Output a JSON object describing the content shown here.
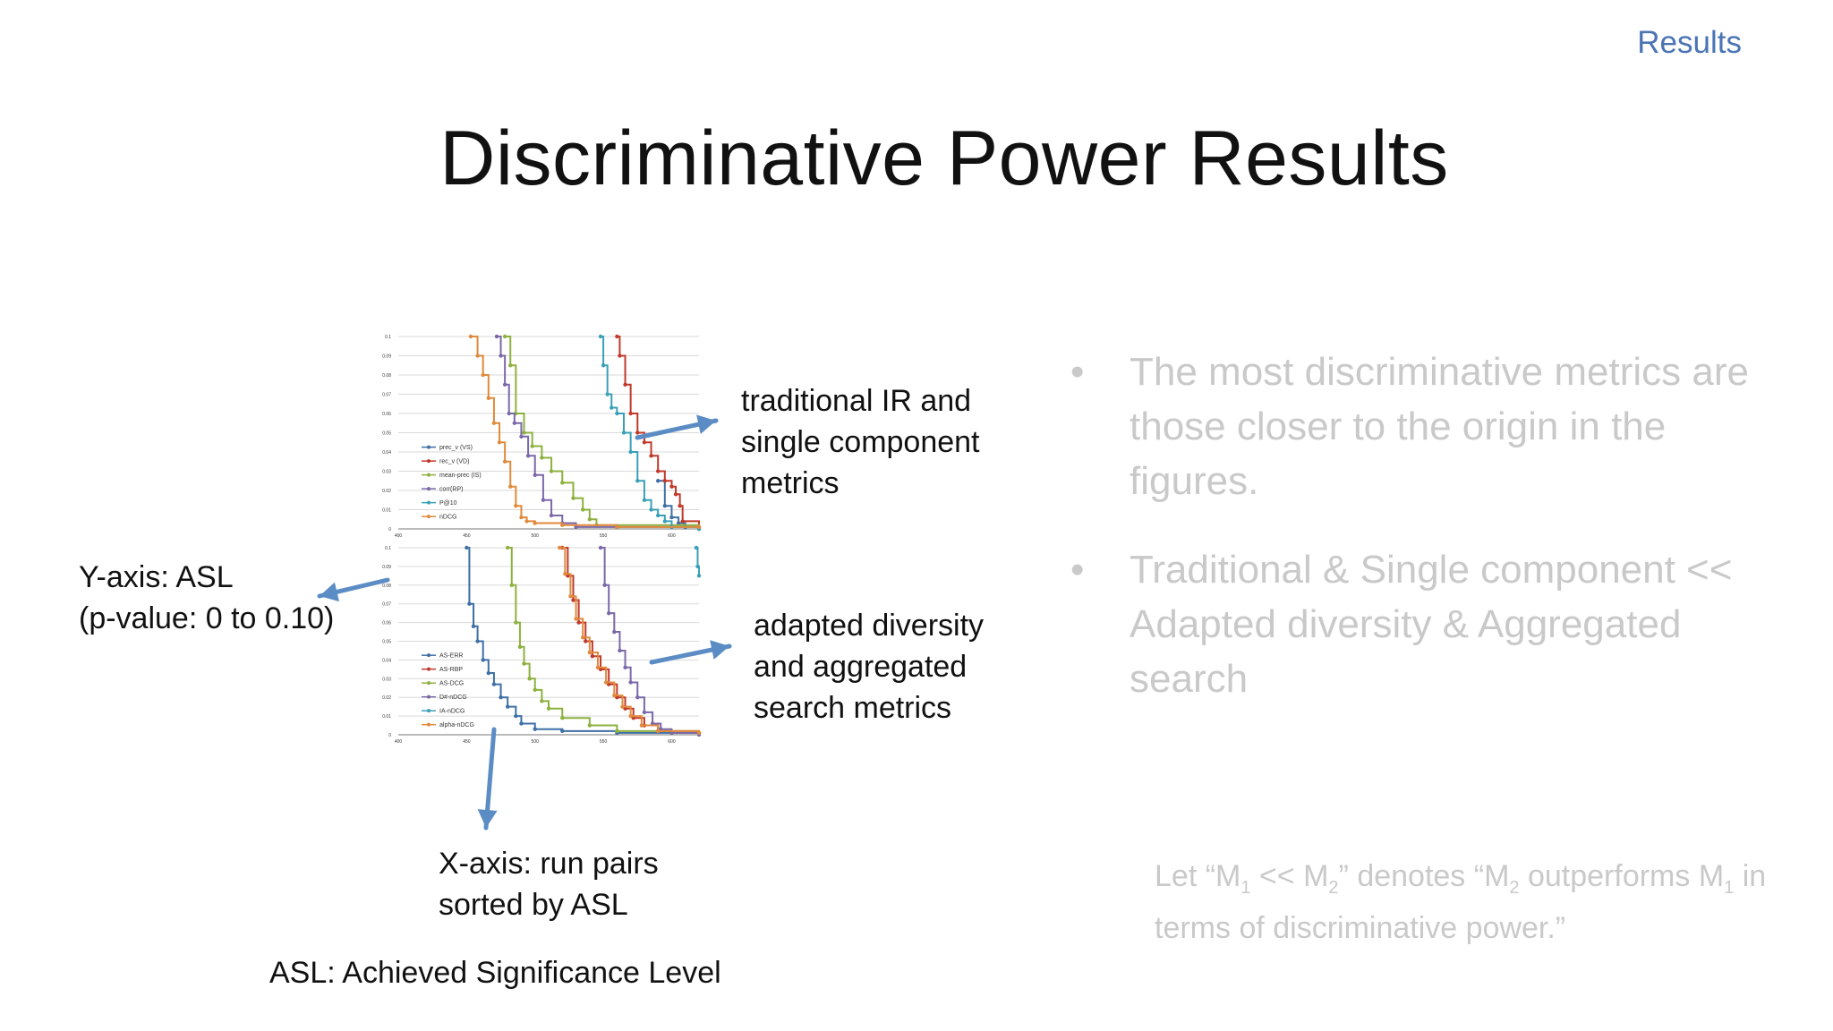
{
  "header": {
    "section": "Results"
  },
  "slide": {
    "title": "Discriminative Power Results"
  },
  "callouts": {
    "top_chart": [
      "traditional IR and",
      "single component",
      "metrics"
    ],
    "bottom_chart": [
      "adapted diversity",
      "and aggregated",
      "search metrics"
    ],
    "y_axis": [
      "Y-axis: ASL",
      "(p-value: 0 to 0.10)"
    ],
    "x_axis": [
      "X-axis: run pairs",
      "sorted by ASL"
    ],
    "asl_definition": "ASL: Achieved Significance Level"
  },
  "bullets": [
    "The most discriminative metrics are those closer to the origin in the figures.",
    "Traditional & Single component << Adapted diversity & Aggregated search"
  ],
  "footnote": {
    "parts": [
      "Let “M",
      "1",
      " << M",
      "2",
      "” denotes “M",
      "2",
      " outperforms M",
      "1",
      " in terms of discriminative power.”"
    ]
  },
  "colors": {
    "accent": "#4a74b4",
    "arrow": "#5b8cc4",
    "faded_text": "#c9c9c9"
  },
  "chart_data": [
    {
      "type": "line",
      "title": "",
      "xlabel": "",
      "ylabel": "",
      "xlim": [
        400,
        620
      ],
      "ylim": [
        0,
        0.1
      ],
      "x_ticks": [
        "400",
        "450",
        "500",
        "550",
        "600"
      ],
      "y_ticks": [
        "0",
        "0.01",
        "0.02",
        "0.03",
        "0.04",
        "0.05",
        "0.06",
        "0.07",
        "0.08",
        "0.09",
        "0.1"
      ],
      "grid": true,
      "legend": "left-inside",
      "series": [
        {
          "name": "prec_v (VS)",
          "color": "#3f6fa6",
          "x": [
            590,
            595,
            600,
            605,
            610,
            620
          ],
          "y": [
            0.025,
            0.012,
            0.006,
            0.003,
            0.001,
            0.0
          ]
        },
        {
          "name": "rec_v (VD)",
          "color": "#c0392b",
          "x": [
            560,
            562,
            566,
            570,
            575,
            580,
            585,
            590,
            595,
            600,
            603,
            606,
            608,
            620
          ],
          "y": [
            0.1,
            0.09,
            0.075,
            0.06,
            0.05,
            0.045,
            0.038,
            0.03,
            0.025,
            0.022,
            0.018,
            0.012,
            0.004,
            0.001
          ]
        },
        {
          "name": "mean-prec (IS)",
          "color": "#8db13f",
          "x": [
            478,
            482,
            486,
            492,
            498,
            505,
            512,
            520,
            528,
            535,
            540,
            545,
            620
          ],
          "y": [
            0.1,
            0.085,
            0.06,
            0.05,
            0.043,
            0.037,
            0.03,
            0.024,
            0.016,
            0.01,
            0.005,
            0.002,
            0.001
          ]
        },
        {
          "name": "corr(RP)",
          "color": "#7b68a8",
          "x": [
            472,
            475,
            478,
            481,
            485,
            490,
            495,
            500,
            506,
            512,
            520,
            530,
            620
          ],
          "y": [
            0.1,
            0.09,
            0.075,
            0.06,
            0.055,
            0.048,
            0.038,
            0.028,
            0.015,
            0.007,
            0.003,
            0.001,
            0.0
          ]
        },
        {
          "name": "P@10",
          "color": "#3aa0b8",
          "x": [
            548,
            550,
            553,
            556,
            560,
            565,
            570,
            575,
            580,
            585,
            590,
            595,
            600,
            620
          ],
          "y": [
            0.1,
            0.085,
            0.07,
            0.063,
            0.06,
            0.05,
            0.04,
            0.025,
            0.015,
            0.01,
            0.007,
            0.004,
            0.001,
            0.0
          ]
        },
        {
          "name": "nDCG",
          "color": "#e08a3c",
          "x": [
            453,
            458,
            462,
            466,
            470,
            474,
            478,
            482,
            486,
            490,
            494,
            500,
            520,
            560,
            620
          ],
          "y": [
            0.1,
            0.09,
            0.08,
            0.068,
            0.055,
            0.045,
            0.035,
            0.022,
            0.012,
            0.006,
            0.004,
            0.003,
            0.002,
            0.001,
            0.001
          ]
        }
      ]
    },
    {
      "type": "line",
      "title": "",
      "xlabel": "",
      "ylabel": "",
      "xlim": [
        400,
        620
      ],
      "ylim": [
        0,
        0.1
      ],
      "x_ticks": [
        "400",
        "450",
        "500",
        "550",
        "600"
      ],
      "y_ticks": [
        "0",
        "0.01",
        "0.02",
        "0.03",
        "0.04",
        "0.05",
        "0.06",
        "0.07",
        "0.08",
        "0.09",
        "0.1"
      ],
      "grid": true,
      "legend": "left-inside",
      "series": [
        {
          "name": "AS-ERR",
          "color": "#3f6fa6",
          "x": [
            450,
            452,
            455,
            458,
            462,
            466,
            470,
            475,
            480,
            486,
            490,
            500,
            520,
            560,
            620
          ],
          "y": [
            0.1,
            0.07,
            0.058,
            0.05,
            0.04,
            0.033,
            0.027,
            0.02,
            0.015,
            0.01,
            0.006,
            0.003,
            0.002,
            0.001,
            0.001
          ]
        },
        {
          "name": "AS-RBP",
          "color": "#c0392b",
          "x": [
            520,
            524,
            528,
            532,
            537,
            542,
            548,
            554,
            560,
            566,
            572,
            580,
            590,
            620
          ],
          "y": [
            0.1,
            0.085,
            0.072,
            0.06,
            0.05,
            0.042,
            0.035,
            0.027,
            0.02,
            0.014,
            0.009,
            0.005,
            0.002,
            0.001
          ]
        },
        {
          "name": "AS-DCG",
          "color": "#8db13f",
          "x": [
            480,
            483,
            486,
            489,
            492,
            496,
            500,
            505,
            510,
            520,
            540,
            560,
            620
          ],
          "y": [
            0.1,
            0.08,
            0.06,
            0.047,
            0.038,
            0.03,
            0.024,
            0.018,
            0.014,
            0.009,
            0.005,
            0.002,
            0.001
          ]
        },
        {
          "name": "D#-nDCG",
          "color": "#7b68a8",
          "x": [
            548,
            551,
            554,
            558,
            562,
            566,
            570,
            575,
            580,
            586,
            592,
            600,
            620
          ],
          "y": [
            0.1,
            0.08,
            0.065,
            0.055,
            0.045,
            0.036,
            0.028,
            0.02,
            0.012,
            0.006,
            0.003,
            0.001,
            0.0
          ]
        },
        {
          "name": "IA-nDCG",
          "color": "#3aa0b8",
          "x": [
            618,
            619,
            620
          ],
          "y": [
            0.1,
            0.09,
            0.085
          ]
        },
        {
          "name": "alpha-nDCG",
          "color": "#e08a3c",
          "x": [
            518,
            522,
            526,
            530,
            535,
            540,
            546,
            552,
            558,
            564,
            570,
            578,
            590,
            620
          ],
          "y": [
            0.1,
            0.086,
            0.074,
            0.062,
            0.052,
            0.044,
            0.036,
            0.028,
            0.021,
            0.015,
            0.01,
            0.005,
            0.002,
            0.001
          ]
        }
      ]
    }
  ]
}
